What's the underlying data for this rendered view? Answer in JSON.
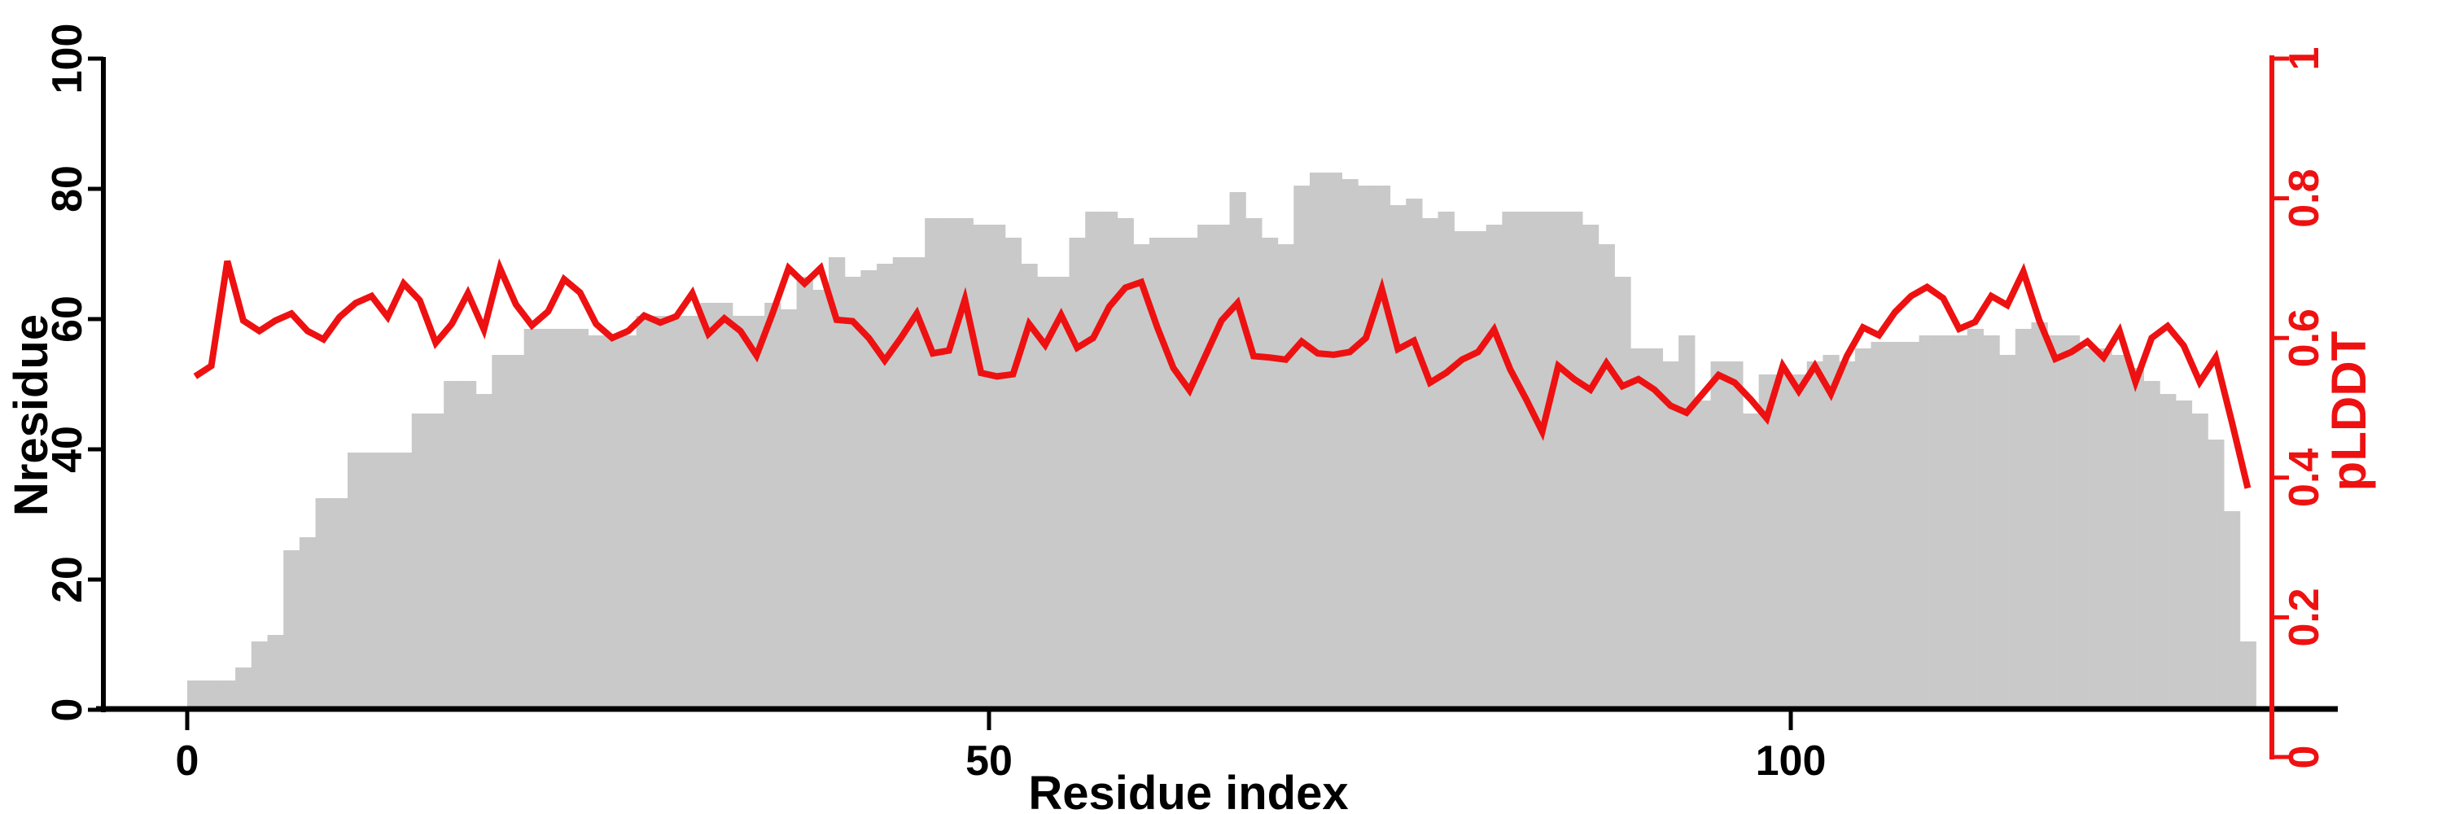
{
  "chart_data": {
    "type": "bar",
    "title": "",
    "xlabel": "Residue index",
    "ylabel_left": "Nresidue",
    "ylabel_right": "pLDDT",
    "x_description": "residue index, one bar and one line point per residue, residues 1 to 129",
    "x_first_residue": 1,
    "n_points": 129,
    "xlim": [
      0,
      130
    ],
    "x_ticks": [
      0,
      50,
      100
    ],
    "x_tick_labels": [
      "0",
      "50",
      "100"
    ],
    "ylim_left": [
      0,
      100
    ],
    "y_ticks_left": [
      0,
      20,
      40,
      60,
      80,
      100
    ],
    "y_left_tick_labels": [
      "0",
      "20",
      "40",
      "60",
      "80",
      "100"
    ],
    "ylim_right": [
      0,
      1
    ],
    "y_ticks_right": [
      0,
      0.2,
      0.4,
      0.6,
      0.8,
      1
    ],
    "y_right_tick_labels": [
      "0",
      "0.2",
      "0.4",
      "0.6",
      "0.8",
      "1"
    ],
    "grid": false,
    "legend": false,
    "colors": {
      "bar": "#c9c9c9",
      "line": "#ee1111",
      "axis": "#000000"
    },
    "series": [
      {
        "name": "Nresidue",
        "type": "bar",
        "yaxis": "left",
        "color": "#c9c9c9",
        "values": [
          4,
          4,
          4,
          6,
          10,
          11,
          24,
          26,
          32,
          32,
          39,
          39,
          39,
          39,
          45,
          45,
          50,
          50,
          48,
          54,
          54,
          58,
          58,
          58,
          58,
          57,
          57,
          57,
          60,
          60,
          60,
          60,
          62,
          62,
          60,
          60,
          62,
          61,
          66,
          64,
          69,
          66,
          67,
          68,
          69,
          69,
          75,
          75,
          75,
          74,
          74,
          72,
          68,
          66,
          66,
          72,
          76,
          76,
          75,
          71,
          72,
          72,
          72,
          74,
          74,
          79,
          75,
          72,
          71,
          80,
          82,
          82,
          81,
          80,
          80,
          77,
          78,
          75,
          76,
          73,
          73,
          74,
          76,
          76,
          76,
          76,
          76,
          74,
          71,
          66,
          55,
          55,
          53,
          57,
          47,
          53,
          53,
          45,
          51,
          51,
          51,
          53,
          54,
          53,
          55,
          56,
          56,
          56,
          57,
          57,
          57,
          58,
          57,
          54,
          58,
          59,
          57,
          57,
          55,
          55,
          54,
          52,
          50,
          48,
          47,
          45,
          41,
          30,
          10
        ]
      },
      {
        "name": "pLDDT",
        "type": "line",
        "yaxis": "right",
        "color": "#ee1111",
        "values": [
          0.545,
          0.56,
          0.71,
          0.625,
          0.61,
          0.625,
          0.635,
          0.61,
          0.598,
          0.63,
          0.65,
          0.66,
          0.63,
          0.678,
          0.654,
          0.593,
          0.62,
          0.664,
          0.612,
          0.7,
          0.648,
          0.618,
          0.638,
          0.684,
          0.665,
          0.62,
          0.6,
          0.61,
          0.632,
          0.622,
          0.631,
          0.664,
          0.606,
          0.628,
          0.61,
          0.575,
          0.635,
          0.7,
          0.678,
          0.7,
          0.626,
          0.624,
          0.6,
          0.568,
          0.6,
          0.635,
          0.578,
          0.582,
          0.655,
          0.55,
          0.545,
          0.548,
          0.62,
          0.59,
          0.633,
          0.586,
          0.6,
          0.645,
          0.672,
          0.68,
          0.615,
          0.557,
          0.525,
          0.575,
          0.625,
          0.65,
          0.574,
          0.572,
          0.569,
          0.595,
          0.578,
          0.576,
          0.58,
          0.6,
          0.67,
          0.584,
          0.596,
          0.536,
          0.55,
          0.569,
          0.58,
          0.612,
          0.555,
          0.512,
          0.466,
          0.56,
          0.541,
          0.526,
          0.564,
          0.531,
          0.541,
          0.526,
          0.503,
          0.493,
          0.52,
          0.547,
          0.536,
          0.512,
          0.485,
          0.56,
          0.524,
          0.56,
          0.52,
          0.574,
          0.615,
          0.604,
          0.637,
          0.66,
          0.673,
          0.657,
          0.613,
          0.623,
          0.66,
          0.647,
          0.695,
          0.625,
          0.57,
          0.58,
          0.595,
          0.572,
          0.61,
          0.537,
          0.6,
          0.617,
          0.589,
          0.537,
          0.572,
          0.48,
          0.385
        ]
      }
    ]
  }
}
